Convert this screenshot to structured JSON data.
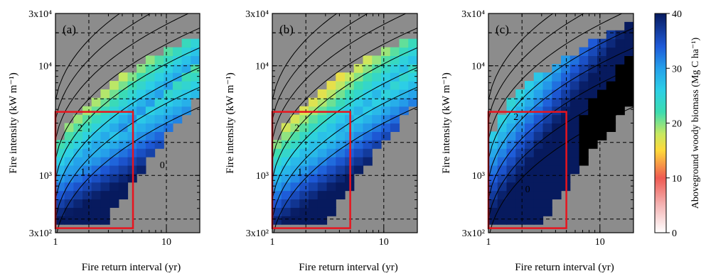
{
  "chart_data": [
    {
      "type": "heatmap",
      "panel_label": "(a)",
      "xlabel": "Fire return interval (yr)",
      "ylabel": "Fire intensity (kW m⁻¹)",
      "x_scale": "log",
      "y_scale": "log",
      "xlim": [
        1,
        20
      ],
      "ylim": [
        300,
        30000
      ],
      "x_ticks": [
        {
          "value": 1,
          "label": "1"
        },
        {
          "value": 10,
          "label": "10"
        }
      ],
      "y_ticks": [
        {
          "value": 300,
          "label": "3x10²"
        },
        {
          "value": 1000,
          "label": "10³"
        },
        {
          "value": 10000,
          "label": "10⁴"
        },
        {
          "value": 30000,
          "label": "3x10⁴"
        }
      ],
      "contour_labels": [
        "2",
        "1",
        "0"
      ],
      "highlight_box": {
        "x": [
          1,
          5
        ],
        "y": [
          330,
          3800
        ]
      }
    },
    {
      "type": "heatmap",
      "panel_label": "(b)",
      "xlabel": "Fire return interval (yr)",
      "ylabel": "Fire intensity (kW m⁻¹)",
      "x_scale": "log",
      "y_scale": "log",
      "xlim": [
        1,
        20
      ],
      "ylim": [
        300,
        30000
      ],
      "x_ticks": [
        {
          "value": 1,
          "label": "1"
        },
        {
          "value": 10,
          "label": "10"
        }
      ],
      "y_ticks": [
        {
          "value": 300,
          "label": "3x10²"
        },
        {
          "value": 1000,
          "label": "10³"
        },
        {
          "value": 10000,
          "label": "10⁴"
        },
        {
          "value": 30000,
          "label": "3x10⁴"
        }
      ],
      "contour_labels": [
        "2",
        "1"
      ],
      "highlight_box": {
        "x": [
          1,
          5
        ],
        "y": [
          330,
          3800
        ]
      }
    },
    {
      "type": "heatmap",
      "panel_label": "(c)",
      "xlabel": "Fire return interval (yr)",
      "ylabel": "Fire intensity (kW m⁻¹)",
      "x_scale": "log",
      "y_scale": "log",
      "xlim": [
        1,
        20
      ],
      "ylim": [
        300,
        30000
      ],
      "x_ticks": [
        {
          "value": 1,
          "label": "1"
        },
        {
          "value": 10,
          "label": "10"
        }
      ],
      "y_ticks": [
        {
          "value": 300,
          "label": "3x10²"
        },
        {
          "value": 1000,
          "label": "10³"
        },
        {
          "value": 10000,
          "label": "10⁴"
        },
        {
          "value": 30000,
          "label": "3x10⁴"
        }
      ],
      "contour_labels": [
        "2",
        "0"
      ],
      "highlight_box": {
        "x": [
          1,
          5
        ],
        "y": [
          330,
          3800
        ]
      }
    }
  ],
  "colorbar": {
    "label": "Aboveground woody biomass (Mg C ha⁻¹)",
    "range": [
      0,
      40
    ],
    "ticks": [
      "0",
      "10",
      "20",
      "30",
      "40"
    ],
    "stops": [
      {
        "v": 0,
        "color": "#ffffff"
      },
      {
        "v": 5,
        "color": "#f4b5b5"
      },
      {
        "v": 10,
        "color": "#ef5a52"
      },
      {
        "v": 15,
        "color": "#ffd93a"
      },
      {
        "v": 18,
        "color": "#c8e860"
      },
      {
        "v": 22,
        "color": "#3cdcb0"
      },
      {
        "v": 26,
        "color": "#2ccfe6"
      },
      {
        "v": 30,
        "color": "#25a0ea"
      },
      {
        "v": 34,
        "color": "#1e5ad8"
      },
      {
        "v": 40,
        "color": "#071a5e"
      }
    ]
  },
  "colors": {
    "no_data": "#8c8c8c",
    "highlight": "#e8141e",
    "contour": "#000000"
  }
}
